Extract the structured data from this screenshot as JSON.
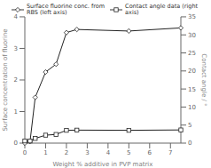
{
  "chart_data": {
    "type": "line",
    "xlabel": "Weight % additive in PVP matrix",
    "ylabel": "Surface concentration of fluorine",
    "y2label": "Contact angle / °",
    "x": [
      0,
      0.25,
      0.5,
      1.0,
      1.5,
      2.0,
      2.5,
      5.0,
      7.5
    ],
    "xlim": [
      0,
      7.5
    ],
    "xticks": [
      0,
      1,
      2,
      3,
      4,
      5,
      6,
      7
    ],
    "ylim": [
      0,
      4
    ],
    "yticks": [
      0,
      1,
      2,
      3,
      4
    ],
    "y2lim": [
      0,
      35
    ],
    "y2ticks": [
      0,
      5,
      10,
      15,
      20,
      25,
      30,
      35
    ],
    "grid": false,
    "legend": "top",
    "series": [
      {
        "name": "Surface fluorine conc. from\nRBS (left axis)",
        "color": "#222222",
        "marker": "diamond",
        "line_style": "solid",
        "values": [
          0.0,
          0.05,
          1.45,
          2.25,
          2.5,
          3.5,
          3.6,
          3.55,
          3.65
        ]
      },
      {
        "name": "Contact angle data (right\naxis)",
        "color": "#222222",
        "marker": "square",
        "line_style": "solid",
        "axis": "y2",
        "values": [
          0.6,
          0.6,
          1.3,
          2.2,
          2.4,
          3.55,
          3.6,
          3.55,
          3.65
        ]
      }
    ]
  }
}
